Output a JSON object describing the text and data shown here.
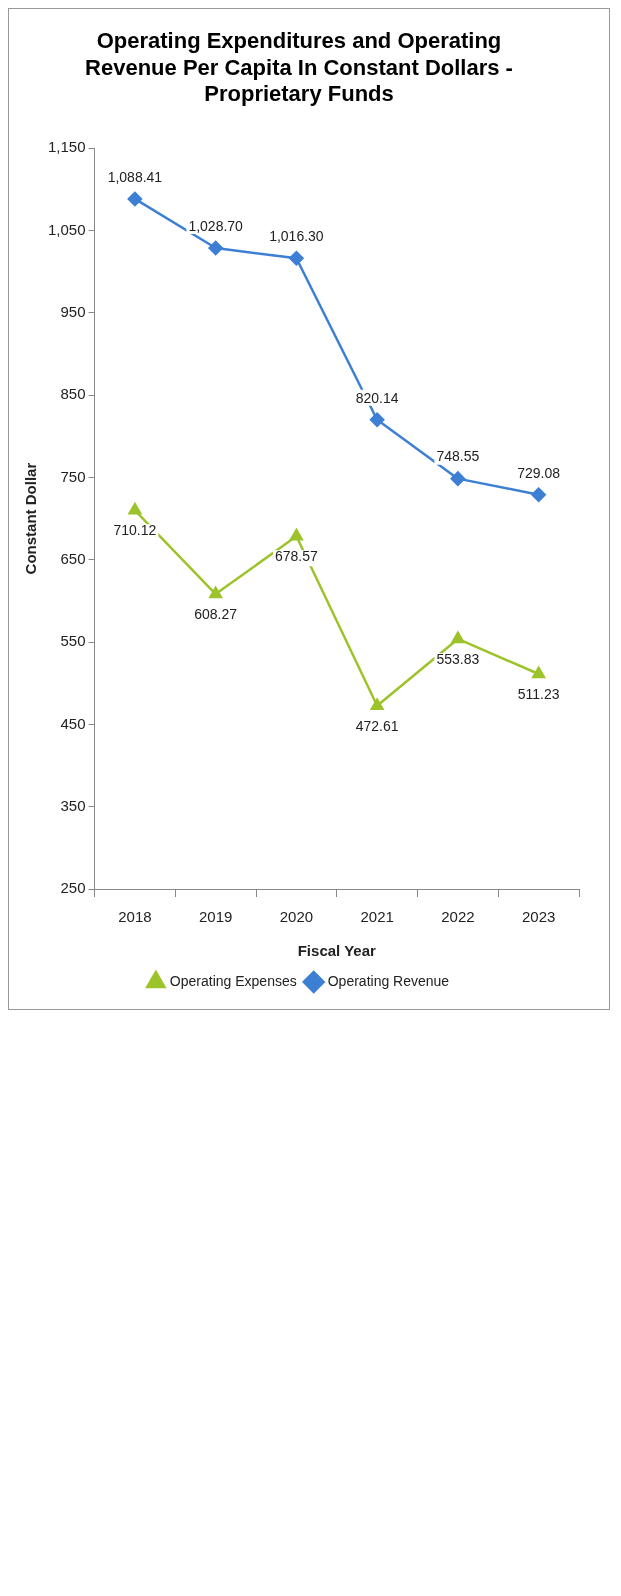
{
  "chart_data": {
    "type": "line",
    "title": "Operating Expenditures and Operating Revenue Per Capita In Constant Dollars - Proprietary Funds",
    "xlabel": "Fiscal Year",
    "ylabel": "Constant Dollar",
    "categories": [
      "2018",
      "2019",
      "2020",
      "2021",
      "2022",
      "2023"
    ],
    "series": [
      {
        "name": "Operating Expenses",
        "color": "#9dc32b",
        "marker": "triangle",
        "values": [
          710.12,
          608.27,
          678.57,
          472.61,
          553.83,
          511.23
        ],
        "value_labels": [
          "710.12",
          "608.27",
          "678.57",
          "472.61",
          "553.83",
          "511.23"
        ]
      },
      {
        "name": "Operating Revenue",
        "color": "#3d7fd5",
        "marker": "diamond",
        "values": [
          1088.41,
          1028.7,
          1016.3,
          820.14,
          748.55,
          729.08
        ],
        "value_labels": [
          "1,088.41",
          "1,028.70",
          "1,016.30",
          "820.14",
          "748.55",
          "729.08"
        ]
      }
    ],
    "ylim": [
      250,
      1150
    ],
    "yticks": [
      250,
      350,
      450,
      550,
      650,
      750,
      850,
      950,
      {
        "value": 1050,
        "label": "1,050"
      },
      {
        "value": 1150,
        "label": "1,150"
      }
    ],
    "grid": false,
    "legend": "bottom",
    "line_style": "solid"
  }
}
